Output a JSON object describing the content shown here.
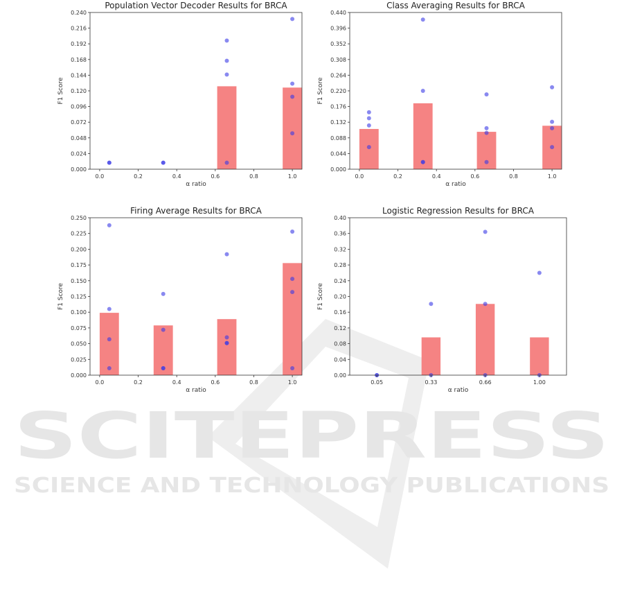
{
  "watermark": {
    "main": "SCITEPRESS",
    "sub": "SCIENCE AND TECHNOLOGY PUBLICATIONS",
    "color": "#e9e9e9"
  },
  "colors": {
    "bar": "#f47c7c",
    "point": "#3a3ae6",
    "axis": "#333333"
  },
  "chart_data": [
    {
      "type": "bar",
      "title": "Population Vector Decoder Results for BRCA",
      "xlabel": "α ratio",
      "ylabel": "F1 Score",
      "xlim": [
        -0.05,
        1.05
      ],
      "ylim": [
        0,
        0.24
      ],
      "xticks": [
        "0.0",
        "0.2",
        "0.4",
        "0.6",
        "0.8",
        "1.0"
      ],
      "xtick_values": [
        0,
        0.2,
        0.4,
        0.6,
        0.8,
        1.0
      ],
      "yticks": [
        "0.000",
        "0.024",
        "0.048",
        "0.072",
        "0.096",
        "0.120",
        "0.144",
        "0.168",
        "0.192",
        "0.216",
        "0.240"
      ],
      "ytick_values": [
        0,
        0.024,
        0.048,
        0.072,
        0.096,
        0.12,
        0.144,
        0.168,
        0.192,
        0.216,
        0.24
      ],
      "bar_width": 0.1,
      "bars": [
        {
          "x": 0.05,
          "value": 0.0
        },
        {
          "x": 0.33,
          "value": 0.0
        },
        {
          "x": 0.66,
          "value": 0.127
        },
        {
          "x": 1.0,
          "value": 0.125
        }
      ],
      "points": [
        {
          "x": 0.05,
          "y": 0.01
        },
        {
          "x": 0.05,
          "y": 0.01
        },
        {
          "x": 0.33,
          "y": 0.01
        },
        {
          "x": 0.33,
          "y": 0.01
        },
        {
          "x": 0.66,
          "y": 0.197
        },
        {
          "x": 0.66,
          "y": 0.166
        },
        {
          "x": 0.66,
          "y": 0.145
        },
        {
          "x": 0.66,
          "y": 0.01
        },
        {
          "x": 1.0,
          "y": 0.23
        },
        {
          "x": 1.0,
          "y": 0.131
        },
        {
          "x": 1.0,
          "y": 0.111
        },
        {
          "x": 1.0,
          "y": 0.055
        }
      ]
    },
    {
      "type": "bar",
      "title": "Class Averaging Results for BRCA",
      "xlabel": "α ratio",
      "ylabel": "F1 Score",
      "xlim": [
        -0.05,
        1.05
      ],
      "ylim": [
        0,
        0.44
      ],
      "xticks": [
        "0.0",
        "0.2",
        "0.4",
        "0.6",
        "0.8",
        "1.0"
      ],
      "xtick_values": [
        0,
        0.2,
        0.4,
        0.6,
        0.8,
        1.0
      ],
      "yticks": [
        "0.000",
        "0.044",
        "0.088",
        "0.132",
        "0.176",
        "0.220",
        "0.264",
        "0.308",
        "0.352",
        "0.396",
        "0.440"
      ],
      "ytick_values": [
        0,
        0.044,
        0.088,
        0.132,
        0.176,
        0.22,
        0.264,
        0.308,
        0.352,
        0.396,
        0.44
      ],
      "bar_width": 0.1,
      "bars": [
        {
          "x": 0.05,
          "value": 0.113
        },
        {
          "x": 0.33,
          "value": 0.185
        },
        {
          "x": 0.66,
          "value": 0.105
        },
        {
          "x": 1.0,
          "value": 0.122
        }
      ],
      "points": [
        {
          "x": 0.05,
          "y": 0.16
        },
        {
          "x": 0.05,
          "y": 0.143
        },
        {
          "x": 0.05,
          "y": 0.123
        },
        {
          "x": 0.05,
          "y": 0.062
        },
        {
          "x": 0.33,
          "y": 0.42
        },
        {
          "x": 0.33,
          "y": 0.22
        },
        {
          "x": 0.33,
          "y": 0.02
        },
        {
          "x": 0.33,
          "y": 0.02
        },
        {
          "x": 0.66,
          "y": 0.21
        },
        {
          "x": 0.66,
          "y": 0.115
        },
        {
          "x": 0.66,
          "y": 0.102
        },
        {
          "x": 0.66,
          "y": 0.02
        },
        {
          "x": 1.0,
          "y": 0.23
        },
        {
          "x": 1.0,
          "y": 0.133
        },
        {
          "x": 1.0,
          "y": 0.115
        },
        {
          "x": 1.0,
          "y": 0.062
        }
      ]
    },
    {
      "type": "bar",
      "title": "Firing Average Results for BRCA",
      "xlabel": "α ratio",
      "ylabel": "F1 Score",
      "xlim": [
        -0.05,
        1.05
      ],
      "ylim": [
        0,
        0.25
      ],
      "xticks": [
        "0.0",
        "0.2",
        "0.4",
        "0.6",
        "0.8",
        "1.0"
      ],
      "xtick_values": [
        0,
        0.2,
        0.4,
        0.6,
        0.8,
        1.0
      ],
      "yticks": [
        "0.000",
        "0.025",
        "0.050",
        "0.075",
        "0.100",
        "0.125",
        "0.150",
        "0.175",
        "0.200",
        "0.225",
        "0.250"
      ],
      "ytick_values": [
        0,
        0.025,
        0.05,
        0.075,
        0.1,
        0.125,
        0.15,
        0.175,
        0.2,
        0.225,
        0.25
      ],
      "bar_width": 0.1,
      "bars": [
        {
          "x": 0.05,
          "value": 0.099
        },
        {
          "x": 0.33,
          "value": 0.079
        },
        {
          "x": 0.66,
          "value": 0.089
        },
        {
          "x": 1.0,
          "value": 0.178
        }
      ],
      "points": [
        {
          "x": 0.05,
          "y": 0.238
        },
        {
          "x": 0.05,
          "y": 0.105
        },
        {
          "x": 0.05,
          "y": 0.057
        },
        {
          "x": 0.05,
          "y": 0.011
        },
        {
          "x": 0.33,
          "y": 0.129
        },
        {
          "x": 0.33,
          "y": 0.072
        },
        {
          "x": 0.33,
          "y": 0.011
        },
        {
          "x": 0.33,
          "y": 0.011
        },
        {
          "x": 0.66,
          "y": 0.192
        },
        {
          "x": 0.66,
          "y": 0.06
        },
        {
          "x": 0.66,
          "y": 0.051
        },
        {
          "x": 0.66,
          "y": 0.051
        },
        {
          "x": 1.0,
          "y": 0.228
        },
        {
          "x": 1.0,
          "y": 0.153
        },
        {
          "x": 1.0,
          "y": 0.132
        },
        {
          "x": 1.0,
          "y": 0.011
        }
      ]
    },
    {
      "type": "bar",
      "title": "Logistic Regression Results for BRCA",
      "xlabel": "α ratio",
      "ylabel": "F1 Score",
      "xlim": [
        -0.5,
        3.5
      ],
      "ylim": [
        0,
        0.4
      ],
      "xticks": [
        "0.05",
        "0.33",
        "0.66",
        "1.00"
      ],
      "xtick_values": [
        0,
        1,
        2,
        3
      ],
      "yticks": [
        "0.00",
        "0.04",
        "0.08",
        "0.12",
        "0.16",
        "0.20",
        "0.24",
        "0.28",
        "0.32",
        "0.36",
        "0.40"
      ],
      "ytick_values": [
        0,
        0.04,
        0.08,
        0.12,
        0.16,
        0.2,
        0.24,
        0.28,
        0.32,
        0.36,
        0.4
      ],
      "bar_width": 0.35,
      "bars": [
        {
          "x": 0,
          "value": 0.0
        },
        {
          "x": 1,
          "value": 0.096
        },
        {
          "x": 2,
          "value": 0.181
        },
        {
          "x": 3,
          "value": 0.096
        }
      ],
      "points": [
        {
          "x": 0,
          "y": 0.0
        },
        {
          "x": 0,
          "y": 0.0
        },
        {
          "x": 1,
          "y": 0.181
        },
        {
          "x": 1,
          "y": 0.0
        },
        {
          "x": 2,
          "y": 0.364
        },
        {
          "x": 2,
          "y": 0.181
        },
        {
          "x": 2,
          "y": 0.0
        },
        {
          "x": 3,
          "y": 0.26
        },
        {
          "x": 3,
          "y": 0.0
        }
      ]
    }
  ]
}
